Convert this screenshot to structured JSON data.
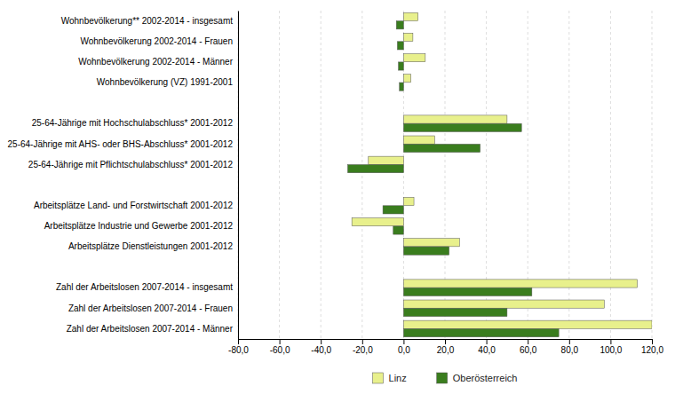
{
  "chart_data": {
    "type": "bar",
    "orientation": "horizontal",
    "categories": [
      "Wohnbevölkerung** 2002-2014 - insgesamt",
      "Wohnbevölkerung 2002-2014 - Frauen",
      "Wohnbevölkerung 2002-2014 - Männer",
      "Wohnbevölkerung (VZ) 1991-2001",
      null,
      "25-64-Jährige mit Hochschulabschluss* 2001-2012",
      "25-64-Jährige mit AHS- oder BHS-Abschluss* 2001-2012",
      "25-64-Jährige mit Pflichtschulabschluss* 2001-2012",
      null,
      "Arbeitsplätze Land- und Forstwirtschaft 2001-2012",
      "Arbeitsplätze Industrie und Gewerbe 2001-2012",
      "Arbeitsplätze Dienstleistungen 2001-2012",
      null,
      "Zahl der Arbeitslosen 2007-2014 - insgesamt",
      "Zahl der Arbeitslosen 2007-2014 - Frauen",
      "Zahl der Arbeitslosen 2007-2014 - Männer"
    ],
    "series": [
      {
        "name": "Linz",
        "color": "#e8f08c",
        "values": [
          7.0,
          4.5,
          10.5,
          3.5,
          null,
          50.0,
          15.0,
          -17.0,
          null,
          5.0,
          -25.0,
          27.0,
          null,
          113.0,
          97.0,
          120.0
        ]
      },
      {
        "name": "Oberösterreich",
        "color": "#3a7d1e",
        "values": [
          -3.5,
          -3.0,
          -2.5,
          -2.0,
          null,
          57.0,
          37.0,
          -27.0,
          null,
          -10.0,
          -5.0,
          22.0,
          null,
          62.0,
          50.0,
          75.0
        ]
      }
    ],
    "xlim": [
      -80,
      120
    ],
    "xticks": [
      {
        "value": -80,
        "label": "-80,0"
      },
      {
        "value": -60,
        "label": "-60,0"
      },
      {
        "value": -40,
        "label": "-40,0"
      },
      {
        "value": -20,
        "label": "-20,0"
      },
      {
        "value": 0,
        "label": "0,0"
      },
      {
        "value": 20,
        "label": "20,0"
      },
      {
        "value": 40,
        "label": "40,0"
      },
      {
        "value": 60,
        "label": "60,0"
      },
      {
        "value": 80,
        "label": "80,0"
      },
      {
        "value": 100,
        "label": "100,0"
      },
      {
        "value": 120,
        "label": "120,0"
      }
    ],
    "grid": true,
    "legend": "bottom"
  }
}
